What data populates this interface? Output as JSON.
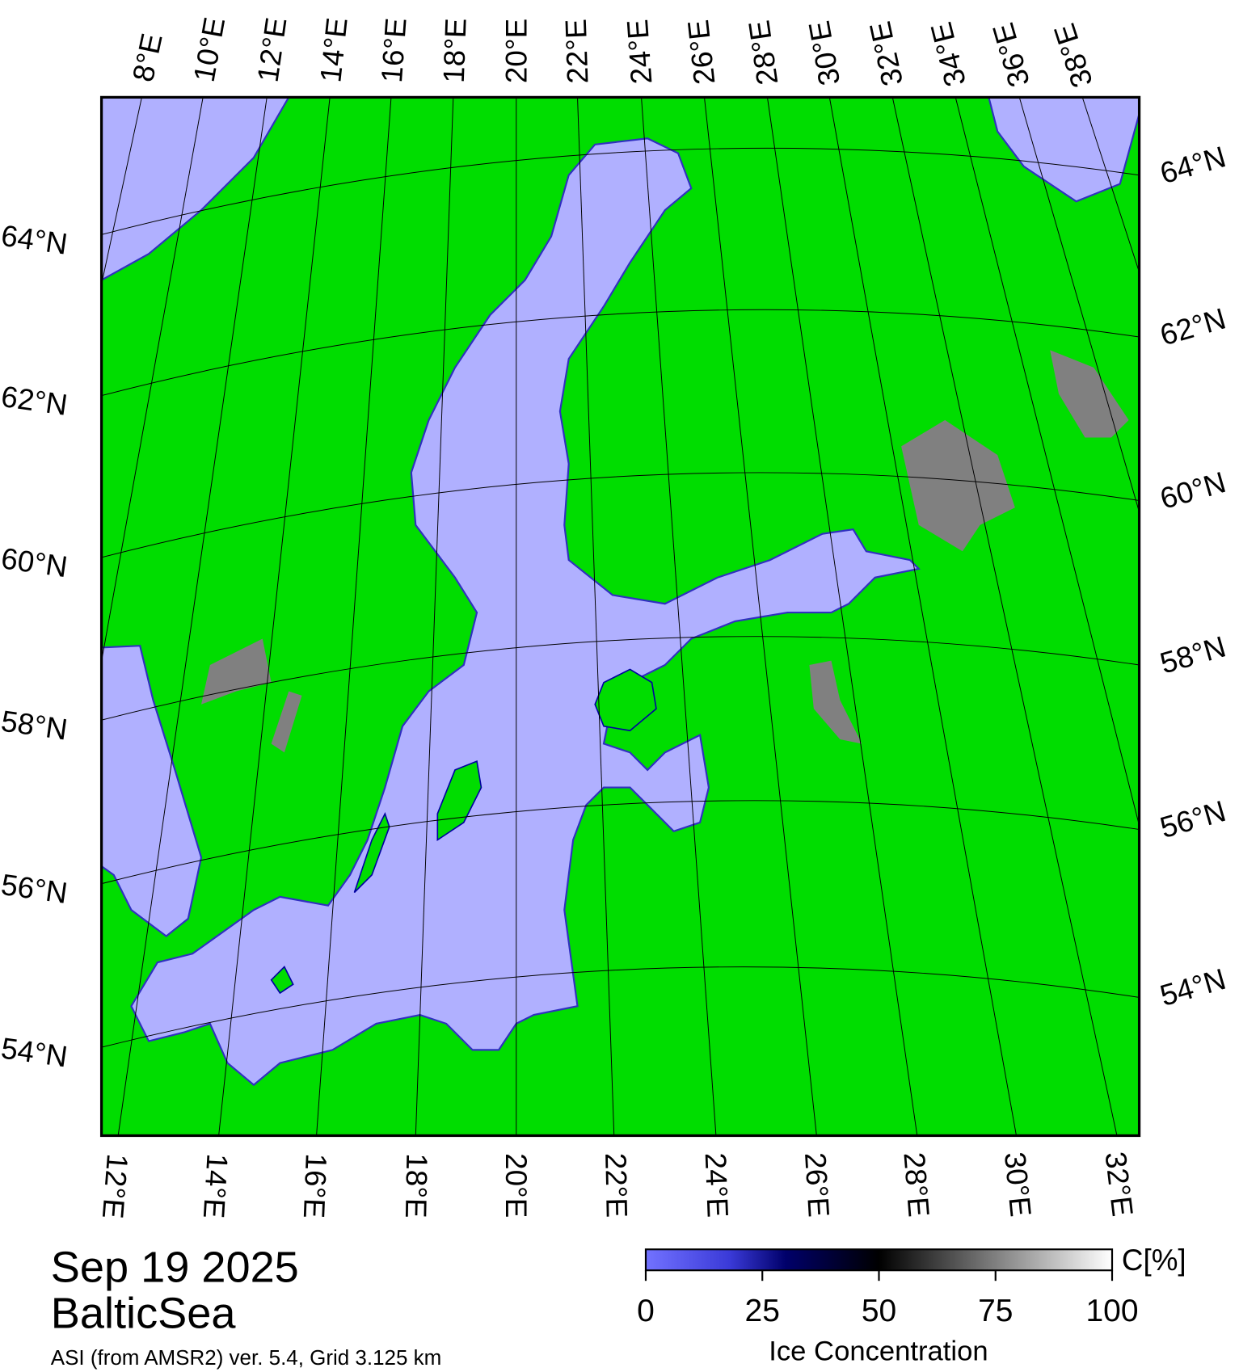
{
  "map": {
    "top_labels": [
      "8°E",
      "10°E",
      "12°E",
      "14°E",
      "16°E",
      "18°E",
      "20°E",
      "22°E",
      "24°E",
      "26°E",
      "28°E",
      "30°E",
      "32°E",
      "34°E",
      "36°E",
      "38°E"
    ],
    "right_labels": [
      "64°N",
      "62°N",
      "60°N",
      "58°N",
      "56°N",
      "54°N"
    ],
    "left_labels": [
      "64°N",
      "62°N",
      "60°N",
      "58°N",
      "56°N",
      "54°N"
    ],
    "bottom_labels": [
      "12°E",
      "14°E",
      "16°E",
      "18°E",
      "20°E",
      "22°E",
      "24°E",
      "26°E",
      "28°E",
      "30°E",
      "32°E"
    ]
  },
  "date": "Sep 19 2025",
  "region": "BalticSea",
  "source": "ASI (from AMSR2) ver. 5.4,  Grid 3.125 km",
  "colorbar": {
    "unit": "C[%]",
    "label": "Ice Concentration",
    "lim": [
      0,
      100
    ],
    "ticks": [
      0,
      25,
      50,
      75,
      100
    ]
  }
}
